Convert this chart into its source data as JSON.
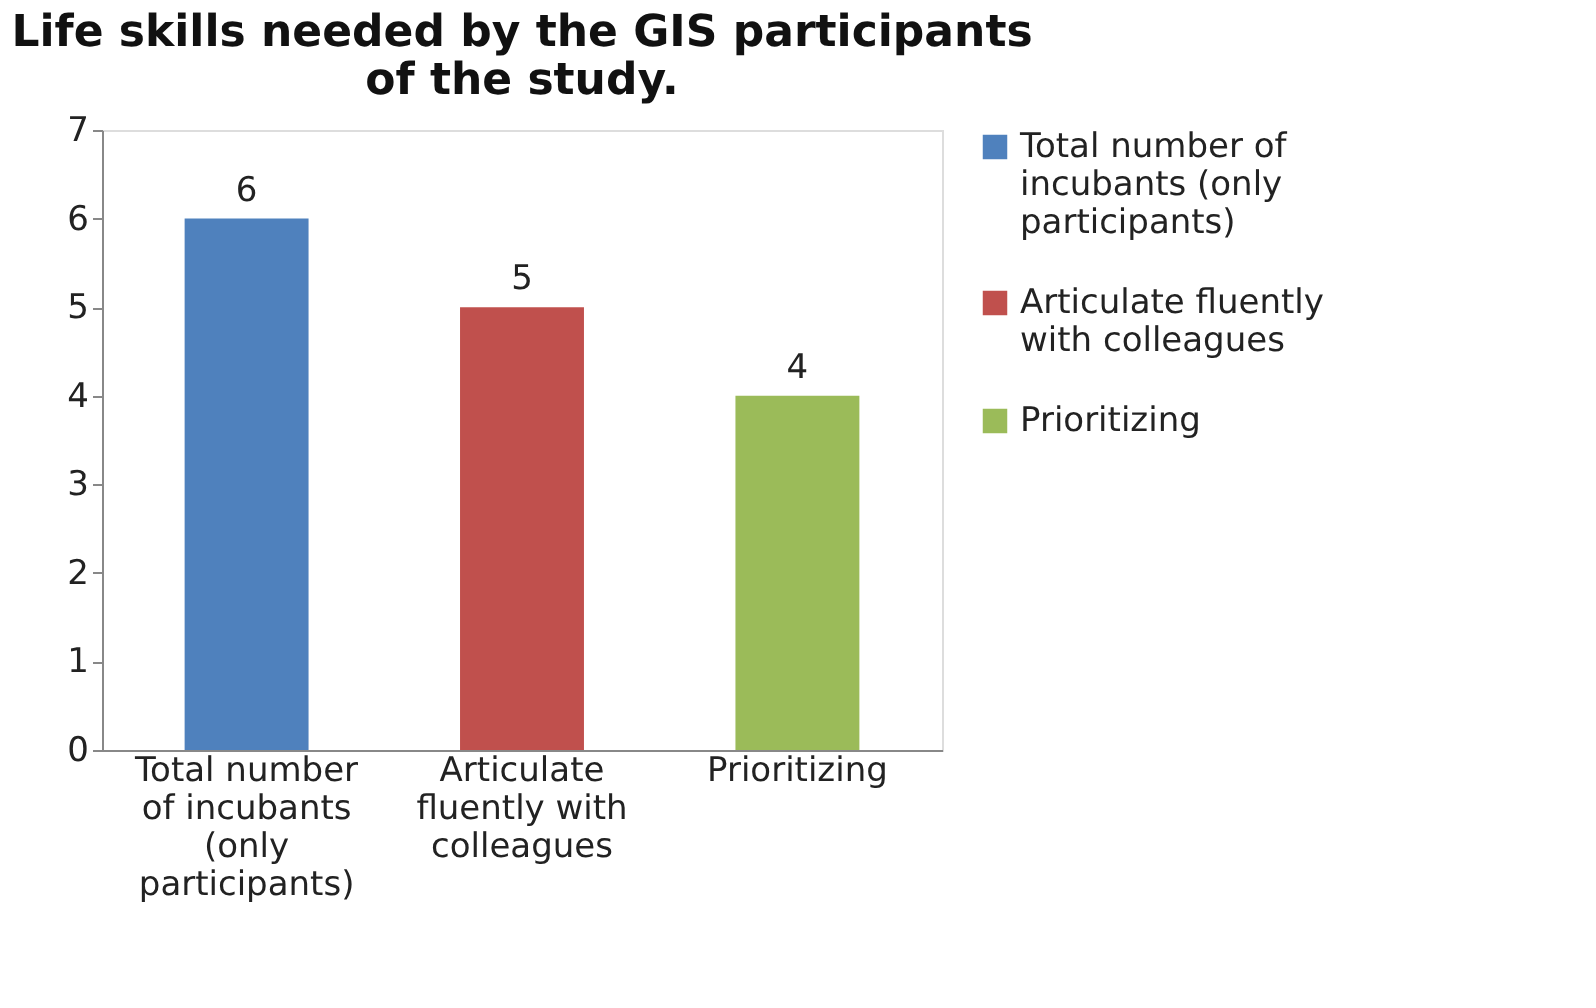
{
  "chart_data": {
    "type": "bar",
    "title": "Life skills needed by the GIS participants of the study.",
    "categories": [
      "Total number of incubants (only participants)",
      "Articulate fluently with colleagues",
      "Prioritizing"
    ],
    "series": [
      {
        "name": "Total number of incubants (only participants)",
        "color": "#4f81bd",
        "values": [
          6,
          null,
          null
        ]
      },
      {
        "name": "Articulate fluently with colleagues",
        "color": "#c0504d",
        "values": [
          null,
          5,
          null
        ]
      },
      {
        "name": "Prioritizing",
        "color": "#9bbb59",
        "values": [
          null,
          null,
          4
        ]
      }
    ],
    "ylim": [
      0,
      7
    ],
    "yticks": [
      0,
      1,
      2,
      3,
      4,
      5,
      6,
      7
    ],
    "grid": false,
    "legend": "right",
    "data_labels": true
  }
}
